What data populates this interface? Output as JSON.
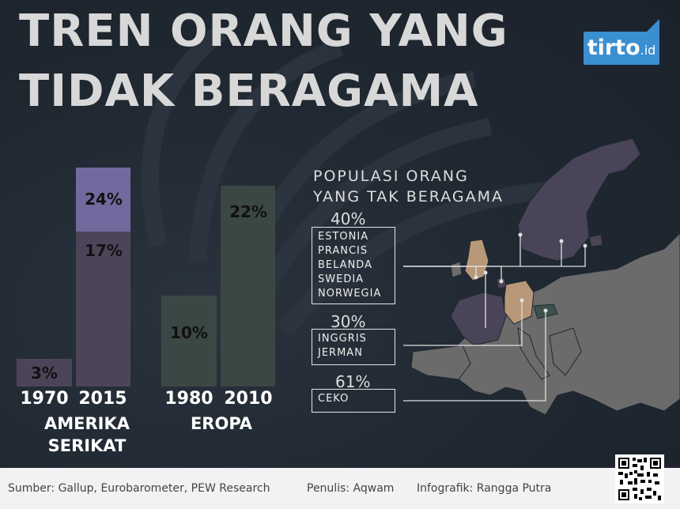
{
  "title_lines": [
    "TREN ORANG YANG",
    "TIDAK BERAGAMA"
  ],
  "logo": {
    "brand": "tirto",
    "suffix": ".id"
  },
  "bars": [
    {
      "label": "3%",
      "value": 3,
      "year": "1970",
      "color": "#4c4559"
    },
    {
      "label": "17%",
      "value": 17,
      "year": "2015",
      "color": "#4c4559"
    },
    {
      "label": "24%",
      "value": 24,
      "color": "#726a9e"
    },
    {
      "label": "10%",
      "value": 10,
      "year": "1980",
      "color": "#3a4745"
    },
    {
      "label": "22%",
      "value": 22,
      "year": "2010",
      "color": "#3a4745"
    }
  ],
  "regions": [
    [
      "AMERIKA",
      "SERIKAT"
    ],
    [
      "EROPA"
    ]
  ],
  "map_title": [
    "POPULASI ORANG",
    "YANG TAK BERAGAMA"
  ],
  "groups": [
    {
      "pct": "40%",
      "countries": [
        "ESTONIA",
        "PRANCIS",
        "BELANDA",
        "SWEDIA",
        "NORWEGIA"
      ]
    },
    {
      "pct": "30%",
      "countries": [
        "INGGRIS",
        "JERMAN"
      ]
    },
    {
      "pct": "61%",
      "countries": [
        "CEKO"
      ]
    }
  ],
  "footer": {
    "source": "Sumber: Gallup, Eurobarometer, PEW Research",
    "author": "Penulis: Aqwam",
    "graphic": "Infografik: Rangga Putra"
  },
  "colors": {
    "us": "#4c4559",
    "us_highlight": "#726a9e",
    "eu": "#3a4745",
    "map_base": "#6b6b6b",
    "map_40": "#4a4458",
    "map_30": "#b89878",
    "map_61": "#3d524d"
  }
}
